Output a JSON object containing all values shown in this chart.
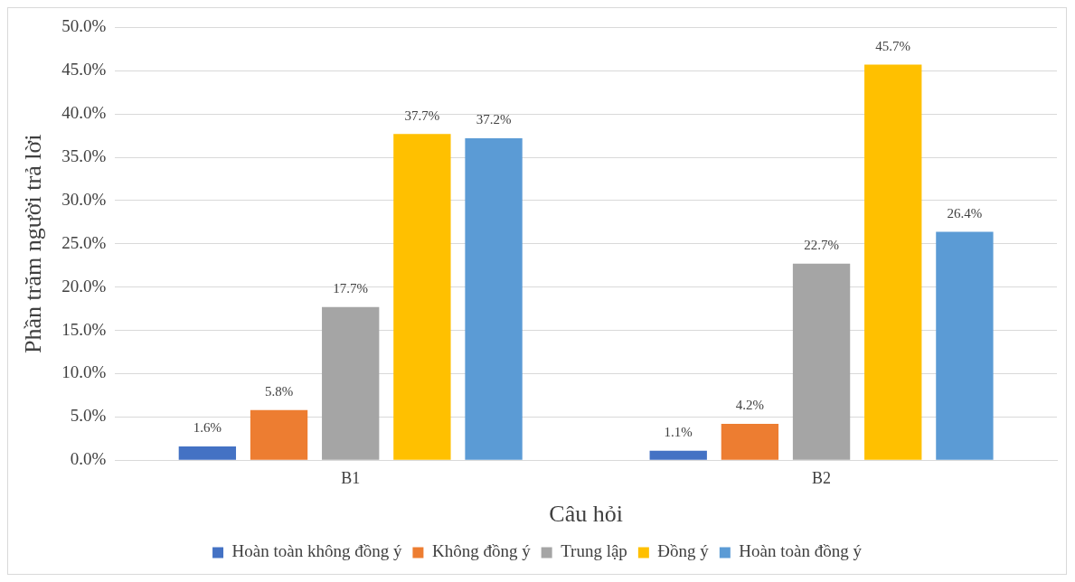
{
  "chart_data": {
    "type": "bar",
    "xlabel": "Câu hỏi",
    "ylabel": "Phần trăm người trả lời",
    "categories": [
      "B1",
      "B2"
    ],
    "series": [
      {
        "name": "Hoàn toàn không đồng ý",
        "color": "#4472c4",
        "values": [
          1.6,
          1.1
        ],
        "value_labels": [
          "1.6%",
          "1.1%"
        ]
      },
      {
        "name": "Không đồng ý",
        "color": "#ed7d31",
        "values": [
          5.8,
          4.2
        ],
        "value_labels": [
          "5.8%",
          "4.2%"
        ]
      },
      {
        "name": "Trung lập",
        "color": "#a5a5a5",
        "values": [
          17.7,
          22.7
        ],
        "value_labels": [
          "17.7%",
          "22.7%"
        ]
      },
      {
        "name": "Đồng ý",
        "color": "#ffc000",
        "values": [
          37.7,
          45.7
        ],
        "value_labels": [
          "37.7%",
          "45.7%"
        ]
      },
      {
        "name": "Hoàn toàn đồng ý",
        "color": "#5b9bd5",
        "values": [
          37.2,
          26.4
        ],
        "value_labels": [
          "37.2%",
          "26.4%"
        ]
      }
    ],
    "ylim": [
      0,
      50
    ],
    "yticks": [
      {
        "value": 0,
        "label": "0.0%"
      },
      {
        "value": 5,
        "label": "5.0%"
      },
      {
        "value": 10,
        "label": "10.0%"
      },
      {
        "value": 15,
        "label": "15.0%"
      },
      {
        "value": 20,
        "label": "20.0%"
      },
      {
        "value": 25,
        "label": "25.0%"
      },
      {
        "value": 30,
        "label": "30.0%"
      },
      {
        "value": 35,
        "label": "35.0%"
      },
      {
        "value": 40,
        "label": "40.0%"
      },
      {
        "value": 45,
        "label": "45.0%"
      },
      {
        "value": 50,
        "label": "50.0%"
      }
    ],
    "grid": "y",
    "legend": "bottom"
  }
}
